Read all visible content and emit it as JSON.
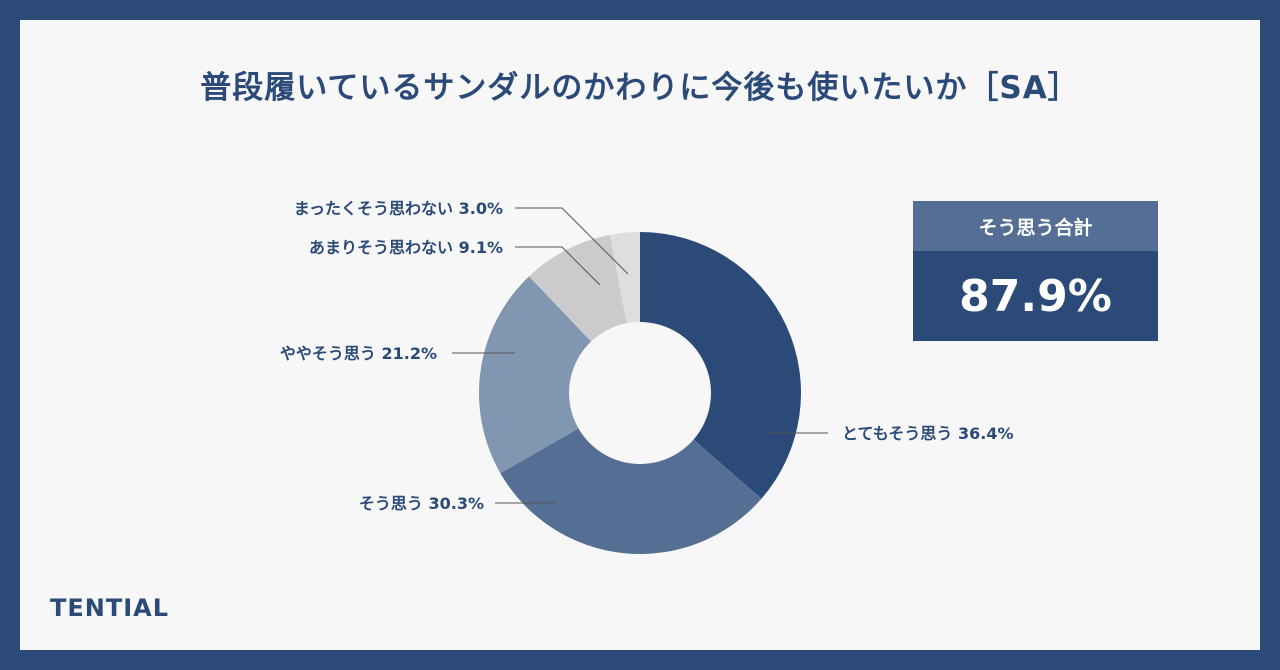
{
  "title": "普段履いているサンダルのかわりに今後も使いたいか［SA］",
  "chart_data": {
    "type": "pie",
    "unit": "%",
    "slices": [
      {
        "label": "とてもそう思う",
        "value": 36.4,
        "display": "36.4%",
        "color": "#2b4a78"
      },
      {
        "label": "そう思う",
        "value": 30.3,
        "display": "30.3%",
        "color": "#546f93"
      },
      {
        "label": "ややそう思う",
        "value": 21.2,
        "display": "21.2%",
        "color": "#8196b0"
      },
      {
        "label": "あまりそう思わない",
        "value": 9.1,
        "display": "9.1%",
        "color": "#cbcbcb"
      },
      {
        "label": "まったくそう思わない",
        "value": 3.0,
        "display": "3.0%",
        "color": "#dedede"
      }
    ]
  },
  "summary": {
    "label": "そう思う合計",
    "value": "87.9%"
  },
  "brand": "TENTIAL"
}
